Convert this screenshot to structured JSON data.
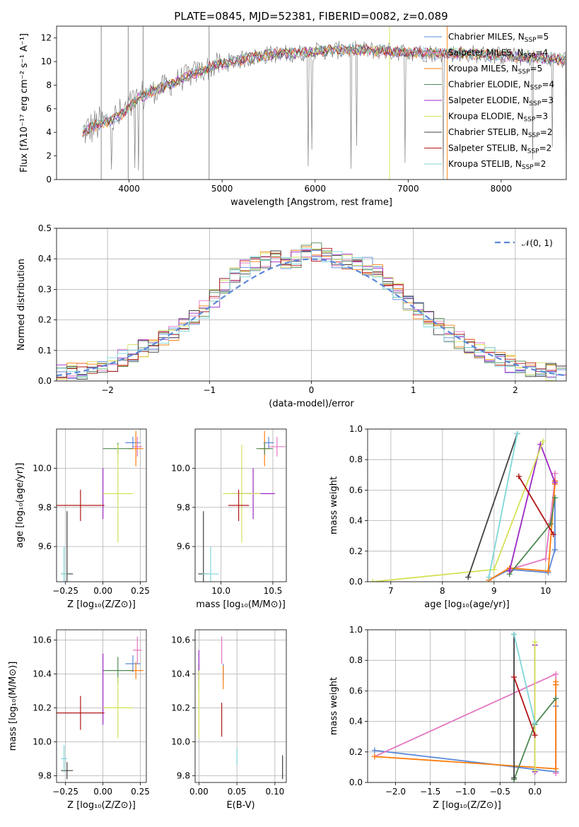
{
  "chart_data": [
    {
      "id": "spectrum",
      "type": "line",
      "title": "PLATE=0845, MJD=52381, FIBERID=0082, z=0.089",
      "xlabel": "wavelength [Angstrom, rest frame]",
      "ylabel": "Flux [fλ10⁻¹⁷ erg cm⁻² s⁻¹ A⁻¹]",
      "xlim": [
        3220,
        8700
      ],
      "ylim": [
        0,
        13
      ],
      "xticks": [
        4000,
        5000,
        6000,
        7000,
        8000
      ],
      "yticks": [
        0,
        2,
        4,
        6,
        8,
        10,
        12
      ],
      "grid": false,
      "legend_position": "right",
      "data_color": "#7f7f7f",
      "data_trend": {
        "wavelength": [
          3500,
          3650,
          3800,
          3950,
          4100,
          4300,
          4500,
          4700,
          4900,
          5100,
          5300,
          5500,
          5800,
          6100,
          6400,
          6700,
          7000,
          7300,
          7600,
          8000,
          8400,
          8700
        ],
        "flux": [
          4.0,
          4.6,
          5.0,
          5.6,
          6.9,
          7.6,
          8.3,
          9.0,
          9.6,
          10.0,
          10.3,
          10.6,
          10.7,
          10.9,
          11.0,
          10.9,
          10.8,
          10.7,
          10.7,
          10.5,
          10.3,
          10.1
        ]
      },
      "series": [
        {
          "name": "Chabrier MILES, N_SSP=5",
          "color": "#5a87d8"
        },
        {
          "name": "Salpeter MILES, N_SSP=4",
          "color": "#e377c2"
        },
        {
          "name": "Kroupa MILES, N_SSP=5",
          "color": "#ff7f0e"
        },
        {
          "name": "Chabrier ELODIE, N_SSP=4",
          "color": "#4e8a52"
        },
        {
          "name": "Salpeter ELODIE, N_SSP=3",
          "color": "#9c27c4"
        },
        {
          "name": "Kroupa ELODIE, N_SSP=3",
          "color": "#d4e157"
        },
        {
          "name": "Chabrier STELIB, N_SSP=2",
          "color": "#404040"
        },
        {
          "name": "Salpeter STELIB, N_SSP=2",
          "color": "#b01515"
        },
        {
          "name": "Kroupa STELIB, N_SSP=2",
          "color": "#7fd6d9"
        }
      ]
    },
    {
      "id": "residuals",
      "type": "line",
      "xlabel": "(data-model)/error",
      "ylabel": "Normed distribution",
      "xlim": [
        -2.5,
        2.5
      ],
      "ylim": [
        0,
        0.5
      ],
      "xticks": [
        -2,
        -1,
        0,
        1,
        2
      ],
      "yticks": [
        0.0,
        0.1,
        0.2,
        0.3,
        0.4,
        0.5
      ],
      "grid": true,
      "legend_position": "top-right",
      "reference": {
        "name": "𝒩(0, 1)",
        "color": "#5a87d8",
        "style": "dashed"
      },
      "bin_width": 0.1,
      "histogram_envelope": {
        "x": [
          -2.5,
          -2.0,
          -1.5,
          -1.2,
          -1.0,
          -0.8,
          -0.6,
          -0.4,
          -0.2,
          0.0,
          0.2,
          0.4,
          0.6,
          0.8,
          1.0,
          1.2,
          1.5,
          2.0,
          2.5
        ],
        "y": [
          0.02,
          0.05,
          0.13,
          0.19,
          0.25,
          0.33,
          0.38,
          0.4,
          0.39,
          0.43,
          0.4,
          0.39,
          0.37,
          0.31,
          0.24,
          0.19,
          0.12,
          0.05,
          0.02
        ]
      }
    },
    {
      "id": "age-vs-Z",
      "type": "scatter",
      "xlabel": "Z [log₁₀(Z/Z⊙)]",
      "ylabel": "age  [log₁₀(age/yr)]",
      "xlim": [
        -0.31,
        0.29
      ],
      "ylim": [
        9.42,
        10.2
      ],
      "xticks": [
        -0.25,
        0.0,
        0.25
      ],
      "yticks": [
        9.6,
        9.8,
        10.0
      ],
      "grid": true,
      "points": [
        {
          "series": "Chabrier MILES",
          "x": 0.2,
          "y": 10.13,
          "xerr": 0.05,
          "yerr": 0.03
        },
        {
          "series": "Salpeter MILES",
          "x": 0.23,
          "y": 10.11,
          "xerr": 0.03,
          "yerr": 0.05
        },
        {
          "series": "Kroupa MILES",
          "x": 0.22,
          "y": 10.1,
          "xerr": 0.05,
          "yerr": 0.09
        },
        {
          "series": "Chabrier ELODIE",
          "x": 0.1,
          "y": 10.1,
          "xerr": 0.1,
          "yerr": 0.03
        },
        {
          "series": "Salpeter ELODIE",
          "x": 0.0,
          "y": 9.87,
          "xerr": 0.0,
          "yerr": 0.13
        },
        {
          "series": "Kroupa ELODIE",
          "x": 0.1,
          "y": 9.87,
          "xerr": 0.1,
          "yerr": 0.25
        },
        {
          "series": "Chabrier STELIB",
          "x": -0.24,
          "y": 9.46,
          "xerr": 0.04,
          "yerr": 0.32
        },
        {
          "series": "Salpeter STELIB",
          "x": -0.15,
          "y": 9.81,
          "xerr": 0.16,
          "yerr": 0.08
        },
        {
          "series": "Kroupa STELIB",
          "x": -0.26,
          "y": 9.46,
          "xerr": 0.02,
          "yerr": 0.14
        }
      ]
    },
    {
      "id": "age-vs-mass",
      "type": "scatter",
      "xlabel": "mass [log₁₀(M/M⊙)]",
      "xlim": [
        9.75,
        10.63
      ],
      "ylim": [
        9.42,
        10.2
      ],
      "xticks": [
        10.0,
        10.5
      ],
      "yticks": [
        9.6,
        9.8,
        10.0
      ],
      "grid": true,
      "points": [
        {
          "series": "Chabrier MILES",
          "x": 10.46,
          "y": 10.13,
          "xerr": 0.05,
          "yerr": 0.03
        },
        {
          "series": "Salpeter MILES",
          "x": 10.54,
          "y": 10.11,
          "xerr": 0.08,
          "yerr": 0.05
        },
        {
          "series": "Kroupa MILES",
          "x": 10.42,
          "y": 10.1,
          "xerr": 0.05,
          "yerr": 0.09
        },
        {
          "series": "Chabrier ELODIE",
          "x": 10.42,
          "y": 10.1,
          "xerr": 0.08,
          "yerr": 0.03
        },
        {
          "series": "Salpeter ELODIE",
          "x": 10.31,
          "y": 9.87,
          "xerr": 0.21,
          "yerr": 0.13
        },
        {
          "series": "Kroupa ELODIE",
          "x": 10.2,
          "y": 9.87,
          "xerr": 0.18,
          "yerr": 0.25
        },
        {
          "series": "Chabrier STELIB",
          "x": 9.83,
          "y": 9.46,
          "xerr": 0.05,
          "yerr": 0.32
        },
        {
          "series": "Salpeter STELIB",
          "x": 10.17,
          "y": 9.81,
          "xerr": 0.1,
          "yerr": 0.08
        },
        {
          "series": "Kroupa STELIB",
          "x": 9.9,
          "y": 9.46,
          "xerr": 0.08,
          "yerr": 0.14
        }
      ]
    },
    {
      "id": "mass-weight-vs-age",
      "type": "line",
      "xlabel": "age  [log₁₀(age/yr)]",
      "ylabel": "mass weight",
      "xlim": [
        6.55,
        10.4
      ],
      "ylim": [
        0,
        1
      ],
      "xticks": [
        7,
        8,
        9,
        10
      ],
      "yticks": [
        0.0,
        0.2,
        0.4,
        0.6,
        0.8,
        1.0
      ],
      "grid": true,
      "series": [
        {
          "series": "Chabrier MILES",
          "x": [
            8.9,
            9.3,
            10.05,
            10.18,
            10.18
          ],
          "y": [
            0.01,
            0.08,
            0.06,
            0.21,
            0.55
          ]
        },
        {
          "series": "Salpeter MILES",
          "x": [
            9.3,
            10.0,
            10.18,
            10.18
          ],
          "y": [
            0.08,
            0.15,
            0.66,
            0.71
          ]
        },
        {
          "series": "Kroupa MILES",
          "x": [
            8.9,
            9.3,
            10.05,
            10.18,
            10.18
          ],
          "y": [
            0.01,
            0.09,
            0.07,
            0.64,
            0.66
          ]
        },
        {
          "series": "Chabrier ELODIE",
          "x": [
            9.3,
            10.1,
            10.18
          ],
          "y": [
            0.05,
            0.38,
            0.55
          ]
        },
        {
          "series": "Salpeter ELODIE",
          "x": [
            9.3,
            9.9,
            10.18
          ],
          "y": [
            0.07,
            0.9,
            0.65
          ]
        },
        {
          "series": "Kroupa ELODIE",
          "x": [
            6.65,
            9.0,
            9.95
          ],
          "y": [
            0.0,
            0.08,
            0.92
          ]
        },
        {
          "series": "Chabrier STELIB",
          "x": [
            8.5,
            9.45
          ],
          "y": [
            0.03,
            0.97
          ]
        },
        {
          "series": "Salpeter STELIB",
          "x": [
            9.48,
            10.15
          ],
          "y": [
            0.69,
            0.31
          ]
        },
        {
          "series": "Kroupa STELIB",
          "x": [
            8.9,
            9.45
          ],
          "y": [
            0.03,
            0.97
          ]
        }
      ]
    },
    {
      "id": "mass-vs-Z",
      "type": "scatter",
      "xlabel": "Z [log₁₀(Z/Z⊙)]",
      "ylabel": "mass [log₁₀(M/M⊙)]",
      "xlim": [
        -0.31,
        0.29
      ],
      "ylim": [
        9.76,
        10.66
      ],
      "xticks": [
        -0.25,
        0.0,
        0.25
      ],
      "yticks": [
        9.8,
        10.0,
        10.2,
        10.4,
        10.6
      ],
      "grid": true,
      "points": [
        {
          "series": "Chabrier MILES",
          "x": 0.2,
          "y": 10.46,
          "xerr": 0.05,
          "yerr": 0.05
        },
        {
          "series": "Salpeter MILES",
          "x": 0.23,
          "y": 10.54,
          "xerr": 0.03,
          "yerr": 0.08
        },
        {
          "series": "Kroupa MILES",
          "x": 0.22,
          "y": 10.42,
          "xerr": 0.05,
          "yerr": 0.05
        },
        {
          "series": "Chabrier ELODIE",
          "x": 0.1,
          "y": 10.42,
          "xerr": 0.1,
          "yerr": 0.08
        },
        {
          "series": "Salpeter ELODIE",
          "x": 0.0,
          "y": 10.31,
          "xerr": 0.0,
          "yerr": 0.21
        },
        {
          "series": "Kroupa ELODIE",
          "x": 0.1,
          "y": 10.2,
          "xerr": 0.1,
          "yerr": 0.18
        },
        {
          "series": "Chabrier STELIB",
          "x": -0.24,
          "y": 9.83,
          "xerr": 0.04,
          "yerr": 0.05
        },
        {
          "series": "Salpeter STELIB",
          "x": -0.15,
          "y": 10.17,
          "xerr": 0.16,
          "yerr": 0.1
        },
        {
          "series": "Kroupa STELIB",
          "x": -0.26,
          "y": 9.9,
          "xerr": 0.02,
          "yerr": 0.08
        }
      ]
    },
    {
      "id": "mass-vs-ebv",
      "type": "scatter",
      "xlabel": "E(B-V)",
      "xlim": [
        -0.005,
        0.115
      ],
      "ylim": [
        9.76,
        10.66
      ],
      "xticks": [
        0.0,
        0.05,
        0.1
      ],
      "yticks": [
        9.8,
        10.0,
        10.2,
        10.4,
        10.6
      ],
      "grid": true,
      "points": [
        {
          "series": "Chabrier MILES",
          "x": 0.032,
          "y": 10.41,
          "xerr": 0.0,
          "yerr": 0.05
        },
        {
          "series": "Salpeter MILES",
          "x": 0.03,
          "y": 10.54,
          "xerr": 0.0,
          "yerr": 0.08
        },
        {
          "series": "Kroupa MILES",
          "x": 0.032,
          "y": 10.38,
          "xerr": 0.0,
          "yerr": 0.07
        },
        {
          "series": "Chabrier ELODIE",
          "x": 0.0,
          "y": 10.38,
          "xerr": 0.0,
          "yerr": 0.08
        },
        {
          "series": "Salpeter ELODIE",
          "x": 0.0,
          "y": 10.45,
          "xerr": 0.0,
          "yerr": 0.09
        },
        {
          "series": "Kroupa ELODIE",
          "x": 0.0,
          "y": 10.22,
          "xerr": 0.0,
          "yerr": 0.2
        },
        {
          "series": "Chabrier STELIB",
          "x": 0.11,
          "y": 9.85,
          "xerr": 0.0,
          "yerr": 0.07
        },
        {
          "series": "Salpeter STELIB",
          "x": 0.03,
          "y": 10.13,
          "xerr": 0.0,
          "yerr": 0.1
        },
        {
          "series": "Kroupa STELIB",
          "x": 0.05,
          "y": 9.91,
          "xerr": 0.0,
          "yerr": 0.05
        }
      ]
    },
    {
      "id": "mass-weight-vs-Z",
      "type": "line",
      "xlabel": "Z [log₁₀(Z/Z⊙)]",
      "ylabel": "mass weight",
      "xlim": [
        -2.4,
        0.45
      ],
      "ylim": [
        0,
        1
      ],
      "xticks": [
        -2.0,
        -1.5,
        -1.0,
        -0.5,
        0.0
      ],
      "yticks": [
        0.0,
        0.2,
        0.4,
        0.6,
        0.8,
        1.0
      ],
      "grid": true,
      "series": [
        {
          "series": "Chabrier MILES",
          "x": [
            -2.3,
            0.3,
            0.3,
            0.3
          ],
          "y": [
            0.21,
            0.07,
            0.5,
            0.55
          ]
        },
        {
          "series": "Salpeter MILES",
          "x": [
            -2.3,
            0.3,
            0.3
          ],
          "y": [
            0.17,
            0.71,
            0.06
          ]
        },
        {
          "series": "Kroupa MILES",
          "x": [
            -2.3,
            0.3,
            0.3,
            0.3
          ],
          "y": [
            0.17,
            0.09,
            0.64,
            0.66
          ]
        },
        {
          "series": "Chabrier ELODIE",
          "x": [
            -0.3,
            0.0,
            0.3
          ],
          "y": [
            0.02,
            0.38,
            0.55
          ]
        },
        {
          "series": "Salpeter ELODIE",
          "x": [
            0.0,
            0.0
          ],
          "y": [
            0.07,
            0.9
          ]
        },
        {
          "series": "Kroupa ELODIE",
          "x": [
            0.0,
            0.0
          ],
          "y": [
            0.08,
            0.92
          ]
        },
        {
          "series": "Chabrier STELIB",
          "x": [
            -0.3,
            -0.3
          ],
          "y": [
            0.03,
            0.97
          ]
        },
        {
          "series": "Salpeter STELIB",
          "x": [
            -0.3,
            0.0
          ],
          "y": [
            0.69,
            0.31
          ]
        },
        {
          "series": "Kroupa STELIB",
          "x": [
            -0.3,
            0.0
          ],
          "y": [
            0.97,
            0.39
          ]
        }
      ]
    }
  ]
}
